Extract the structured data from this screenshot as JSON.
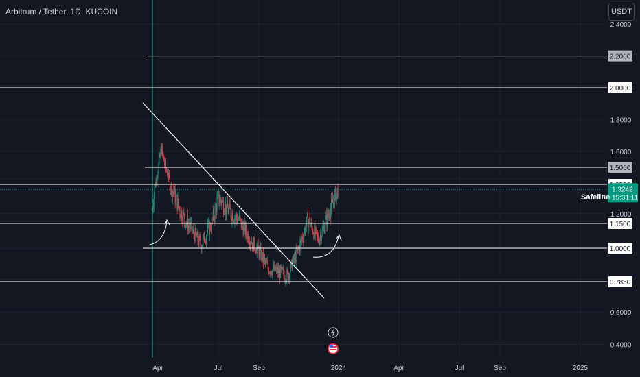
{
  "header": {
    "symbol_title": "Arbitrum / Tether, 1D, KUCOIN",
    "currency": "USDT"
  },
  "price_scale": {
    "ticks": [
      "2.4000",
      "1.8000",
      "1.6000",
      "1.2000",
      "0.6000",
      "0.4000"
    ]
  },
  "time_scale": {
    "ticks": [
      "Apr",
      "Jul",
      "Sep",
      "2024",
      "Apr",
      "Jul",
      "Sep",
      "2025"
    ]
  },
  "levels": [
    {
      "value": 2.2,
      "label": "2.2000",
      "badge": "gray"
    },
    {
      "value": 2.0,
      "label": "2.0000",
      "badge": "white"
    },
    {
      "value": 1.5,
      "label": "1.5000",
      "badge": "gray"
    },
    {
      "value": 1.35,
      "label": "1.3500",
      "badge": "white"
    },
    {
      "value": 1.15,
      "label": "1.1500",
      "badge": "white"
    },
    {
      "value": 1.0,
      "label": "1.0000",
      "badge": "white"
    },
    {
      "value": 0.785,
      "label": "0.7850",
      "badge": "white"
    }
  ],
  "last_price": {
    "value": 1.3242,
    "label": "1.3242",
    "countdown": "15:31:11",
    "line_label": "Safeline",
    "color": "#089981"
  },
  "colors": {
    "background": "#131722",
    "up": "#089981",
    "down": "#f23645",
    "text": "#d1d4dc",
    "level_line": "#ffffff"
  },
  "chart_data": {
    "type": "candlestick",
    "x": [
      "2023-03-23",
      "2023-04-06",
      "2023-04-20",
      "2023-05-05",
      "2023-05-20",
      "2023-06-05",
      "2023-06-20",
      "2023-07-01",
      "2023-07-15",
      "2023-08-01",
      "2023-08-15",
      "2023-09-01",
      "2023-09-15",
      "2023-10-01",
      "2023-10-15",
      "2023-11-01",
      "2023-11-15",
      "2023-12-01",
      "2023-12-15",
      "2023-12-31"
    ],
    "close": [
      1.22,
      1.62,
      1.35,
      1.21,
      1.12,
      1.02,
      1.14,
      1.28,
      1.22,
      1.17,
      1.08,
      0.98,
      0.87,
      0.85,
      0.82,
      1.0,
      1.17,
      1.05,
      1.18,
      1.3242
    ],
    "ylim": [
      0.3,
      2.45
    ],
    "xlim": [
      "2023-03-10",
      "2025-03-01"
    ],
    "grid": true
  }
}
